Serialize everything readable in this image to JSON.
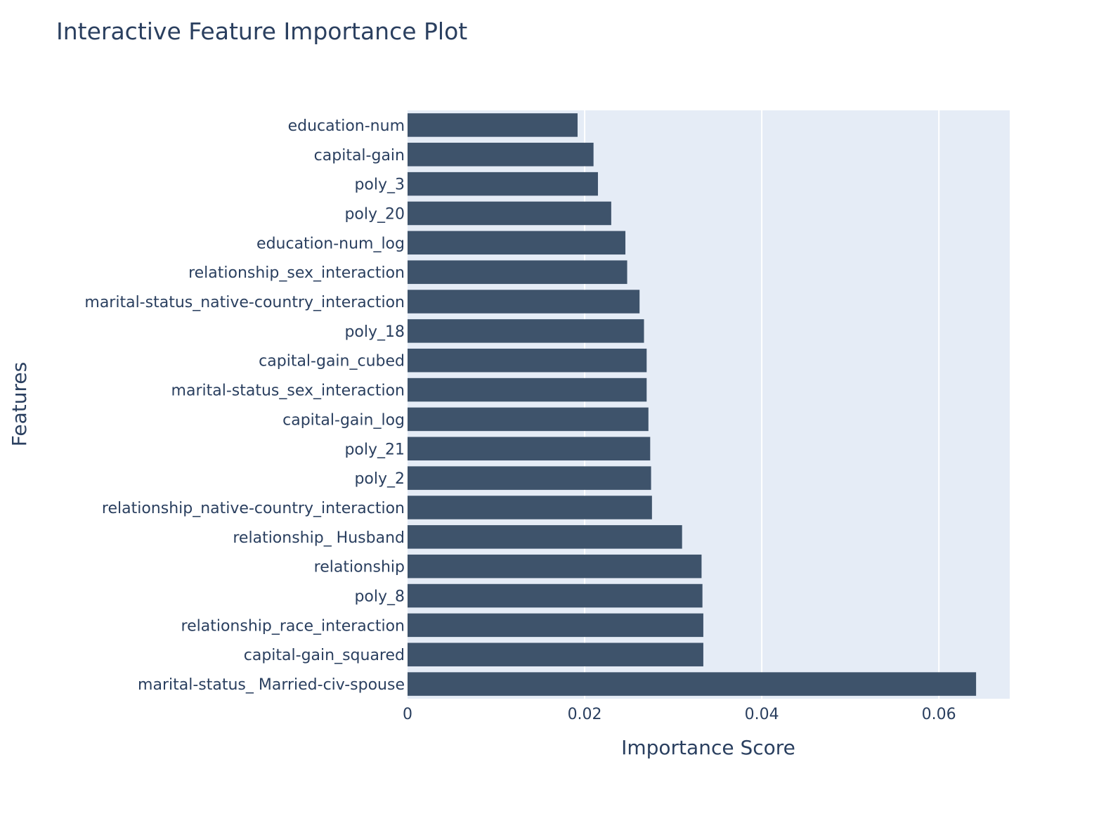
{
  "chart_data": {
    "type": "bar",
    "orientation": "horizontal",
    "title": "Interactive Feature Importance Plot",
    "xlabel": "Importance Score",
    "ylabel": "Features",
    "xlim": [
      0,
      0.068
    ],
    "xticks": [
      {
        "value": 0,
        "label": "0"
      },
      {
        "value": 0.02,
        "label": "0.02"
      },
      {
        "value": 0.04,
        "label": "0.04"
      },
      {
        "value": 0.06,
        "label": "0.06"
      }
    ],
    "grid": true,
    "legend": false,
    "categories": [
      "education-num",
      "capital-gain",
      "poly_3",
      "poly_20",
      "education-num_log",
      "relationship_sex_interaction",
      "marital-status_native-country_interaction",
      "poly_18",
      "capital-gain_cubed",
      "marital-status_sex_interaction",
      "capital-gain_log",
      "poly_21",
      "poly_2",
      "relationship_native-country_interaction",
      "relationship_ Husband",
      "relationship",
      "poly_8",
      "relationship_race_interaction",
      "capital-gain_squared",
      "marital-status_ Married-civ-spouse"
    ],
    "values": [
      0.0192,
      0.021,
      0.0215,
      0.023,
      0.0246,
      0.0248,
      0.0262,
      0.0267,
      0.027,
      0.027,
      0.0272,
      0.0274,
      0.0275,
      0.0276,
      0.031,
      0.0332,
      0.0333,
      0.0334,
      0.0334,
      0.0642
    ],
    "colors": {
      "bar": "#3e536b",
      "plot_bg": "#e5ecf6",
      "grid": "#ffffff",
      "text": "#2a3f5f"
    }
  }
}
